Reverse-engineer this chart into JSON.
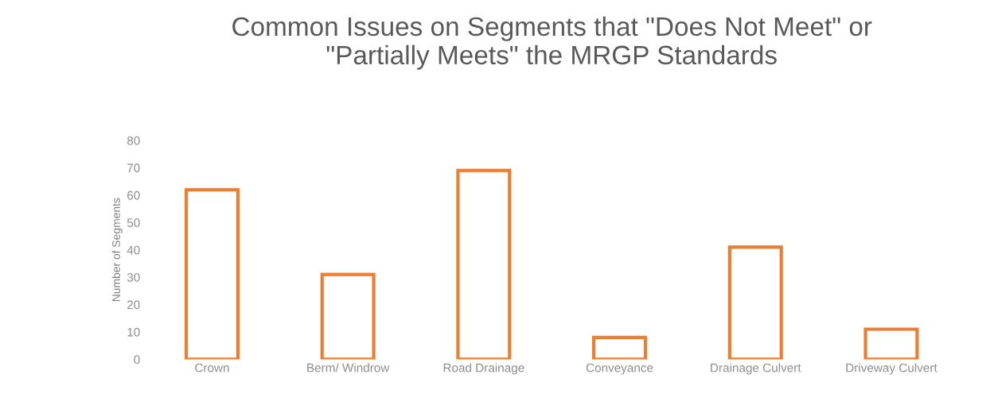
{
  "chart_data": {
    "type": "bar",
    "title": "Common Issues on Segments that \"Does Not Meet\" or\n\"Partially Meets\" the MRGP Standards",
    "ylabel": "Number of Segments",
    "categories": [
      "Crown",
      "Berm/ Windrow",
      "Road Drainage",
      "Conveyance",
      "Drainage Culvert",
      "Driveway Culvert"
    ],
    "values": [
      62,
      31,
      69,
      8,
      41,
      11
    ],
    "color": "#ed7d31",
    "ylim": [
      0,
      80
    ],
    "yticks": [
      0,
      10,
      20,
      30,
      40,
      50,
      60,
      70,
      80
    ],
    "grid": false,
    "legend": false
  }
}
